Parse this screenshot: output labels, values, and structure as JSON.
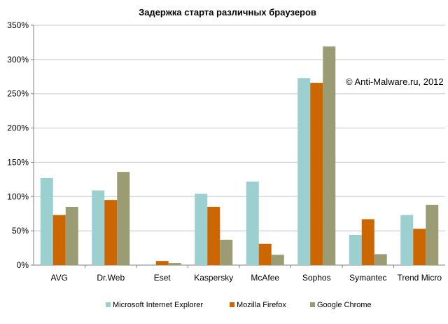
{
  "chart_data": {
    "type": "bar",
    "title": "Задержка старта различных браузеров",
    "annotation": "© Anti-Malware.ru, 2012",
    "xlabel": "",
    "ylabel": "",
    "ylim": [
      0,
      350
    ],
    "yticks": [
      0,
      50,
      100,
      150,
      200,
      250,
      300,
      350
    ],
    "ytick_labels": [
      "0%",
      "50%",
      "100%",
      "150%",
      "200%",
      "250%",
      "300%",
      "350%"
    ],
    "grid": "horizontal",
    "legend_position": "bottom",
    "categories": [
      "AVG",
      "Dr.Web",
      "Eset",
      "Kaspersky",
      "McAfee",
      "Sophos",
      "Symantec",
      "Trend Micro"
    ],
    "series": [
      {
        "name": "Microsoft Internet Explorer",
        "color": "#9ccfcf",
        "values": [
          127,
          109,
          1,
          104,
          122,
          273,
          44,
          73
        ]
      },
      {
        "name": "Mozilla Firefox",
        "color": "#cc6600",
        "values": [
          73,
          95,
          6,
          85,
          31,
          266,
          67,
          53
        ]
      },
      {
        "name": "Google Chrome",
        "color": "#9c9c74",
        "values": [
          85,
          136,
          3,
          37,
          15,
          319,
          16,
          88
        ]
      }
    ]
  }
}
